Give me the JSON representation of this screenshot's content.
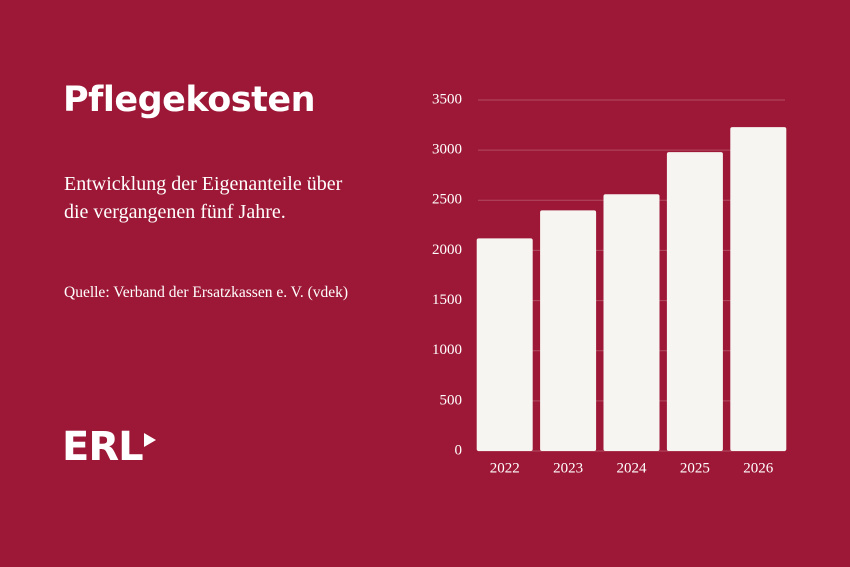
{
  "chart_data": {
    "type": "bar",
    "title": "Pflegekosten",
    "subtitle": "Entwicklung der Eigenanteile über die vergangenen fünf Jahre.",
    "source": "Quelle: Verband der Ersatzkassen e. V. (vdek)",
    "logo": "ERL",
    "categories": [
      "2022",
      "2023",
      "2024",
      "2025",
      "2026"
    ],
    "values": [
      2120,
      2400,
      2560,
      2980,
      3230
    ],
    "color": "#f7f5f2",
    "ylim": [
      0,
      3500
    ],
    "yticks": [
      0,
      500,
      1000,
      1500,
      2000,
      2500,
      3000,
      3500
    ],
    "grid": true
  }
}
